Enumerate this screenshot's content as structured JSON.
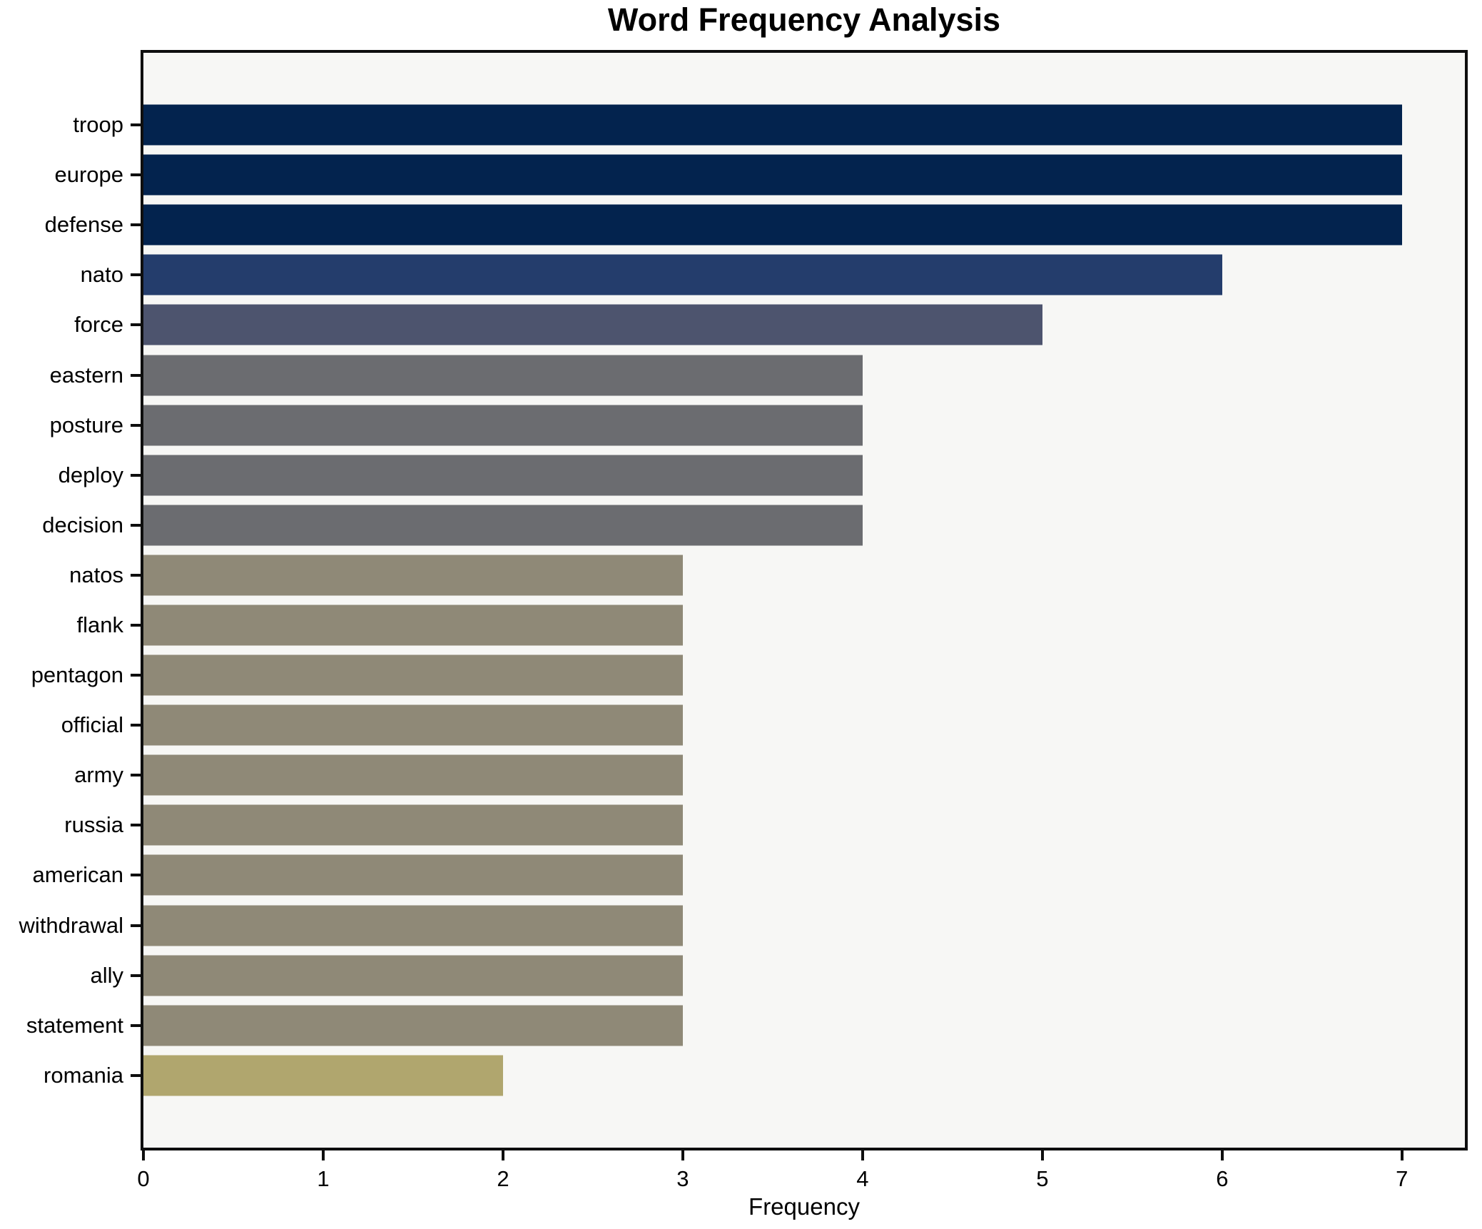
{
  "title": "Word Frequency Analysis",
  "chart_data": {
    "type": "bar",
    "orientation": "horizontal",
    "title": "Word Frequency Analysis",
    "xlabel": "Frequency",
    "ylabel": "",
    "categories": [
      "troop",
      "europe",
      "defense",
      "nato",
      "force",
      "eastern",
      "posture",
      "deploy",
      "decision",
      "natos",
      "flank",
      "pentagon",
      "official",
      "army",
      "russia",
      "american",
      "withdrawal",
      "ally",
      "statement",
      "romania"
    ],
    "values": [
      7,
      7,
      7,
      6,
      5,
      4,
      4,
      4,
      4,
      3,
      3,
      3,
      3,
      3,
      3,
      3,
      3,
      3,
      3,
      2
    ],
    "bar_colors": [
      "#03234e",
      "#03234e",
      "#03234e",
      "#243d6c",
      "#4d546e",
      "#6b6c70",
      "#6b6c70",
      "#6b6c70",
      "#6b6c70",
      "#8f8977",
      "#8f8977",
      "#8f8977",
      "#8f8977",
      "#8f8977",
      "#8f8977",
      "#8f8977",
      "#8f8977",
      "#8f8977",
      "#8f8977",
      "#b0a66e"
    ],
    "xlim": [
      0,
      7.35
    ],
    "xticks": [
      0,
      1,
      2,
      3,
      4,
      5,
      6,
      7
    ],
    "grid": false,
    "legend": null,
    "plot_background": "#f7f7f5",
    "figure_background": "#ffffff",
    "spine_color": "#0e0e0e"
  }
}
